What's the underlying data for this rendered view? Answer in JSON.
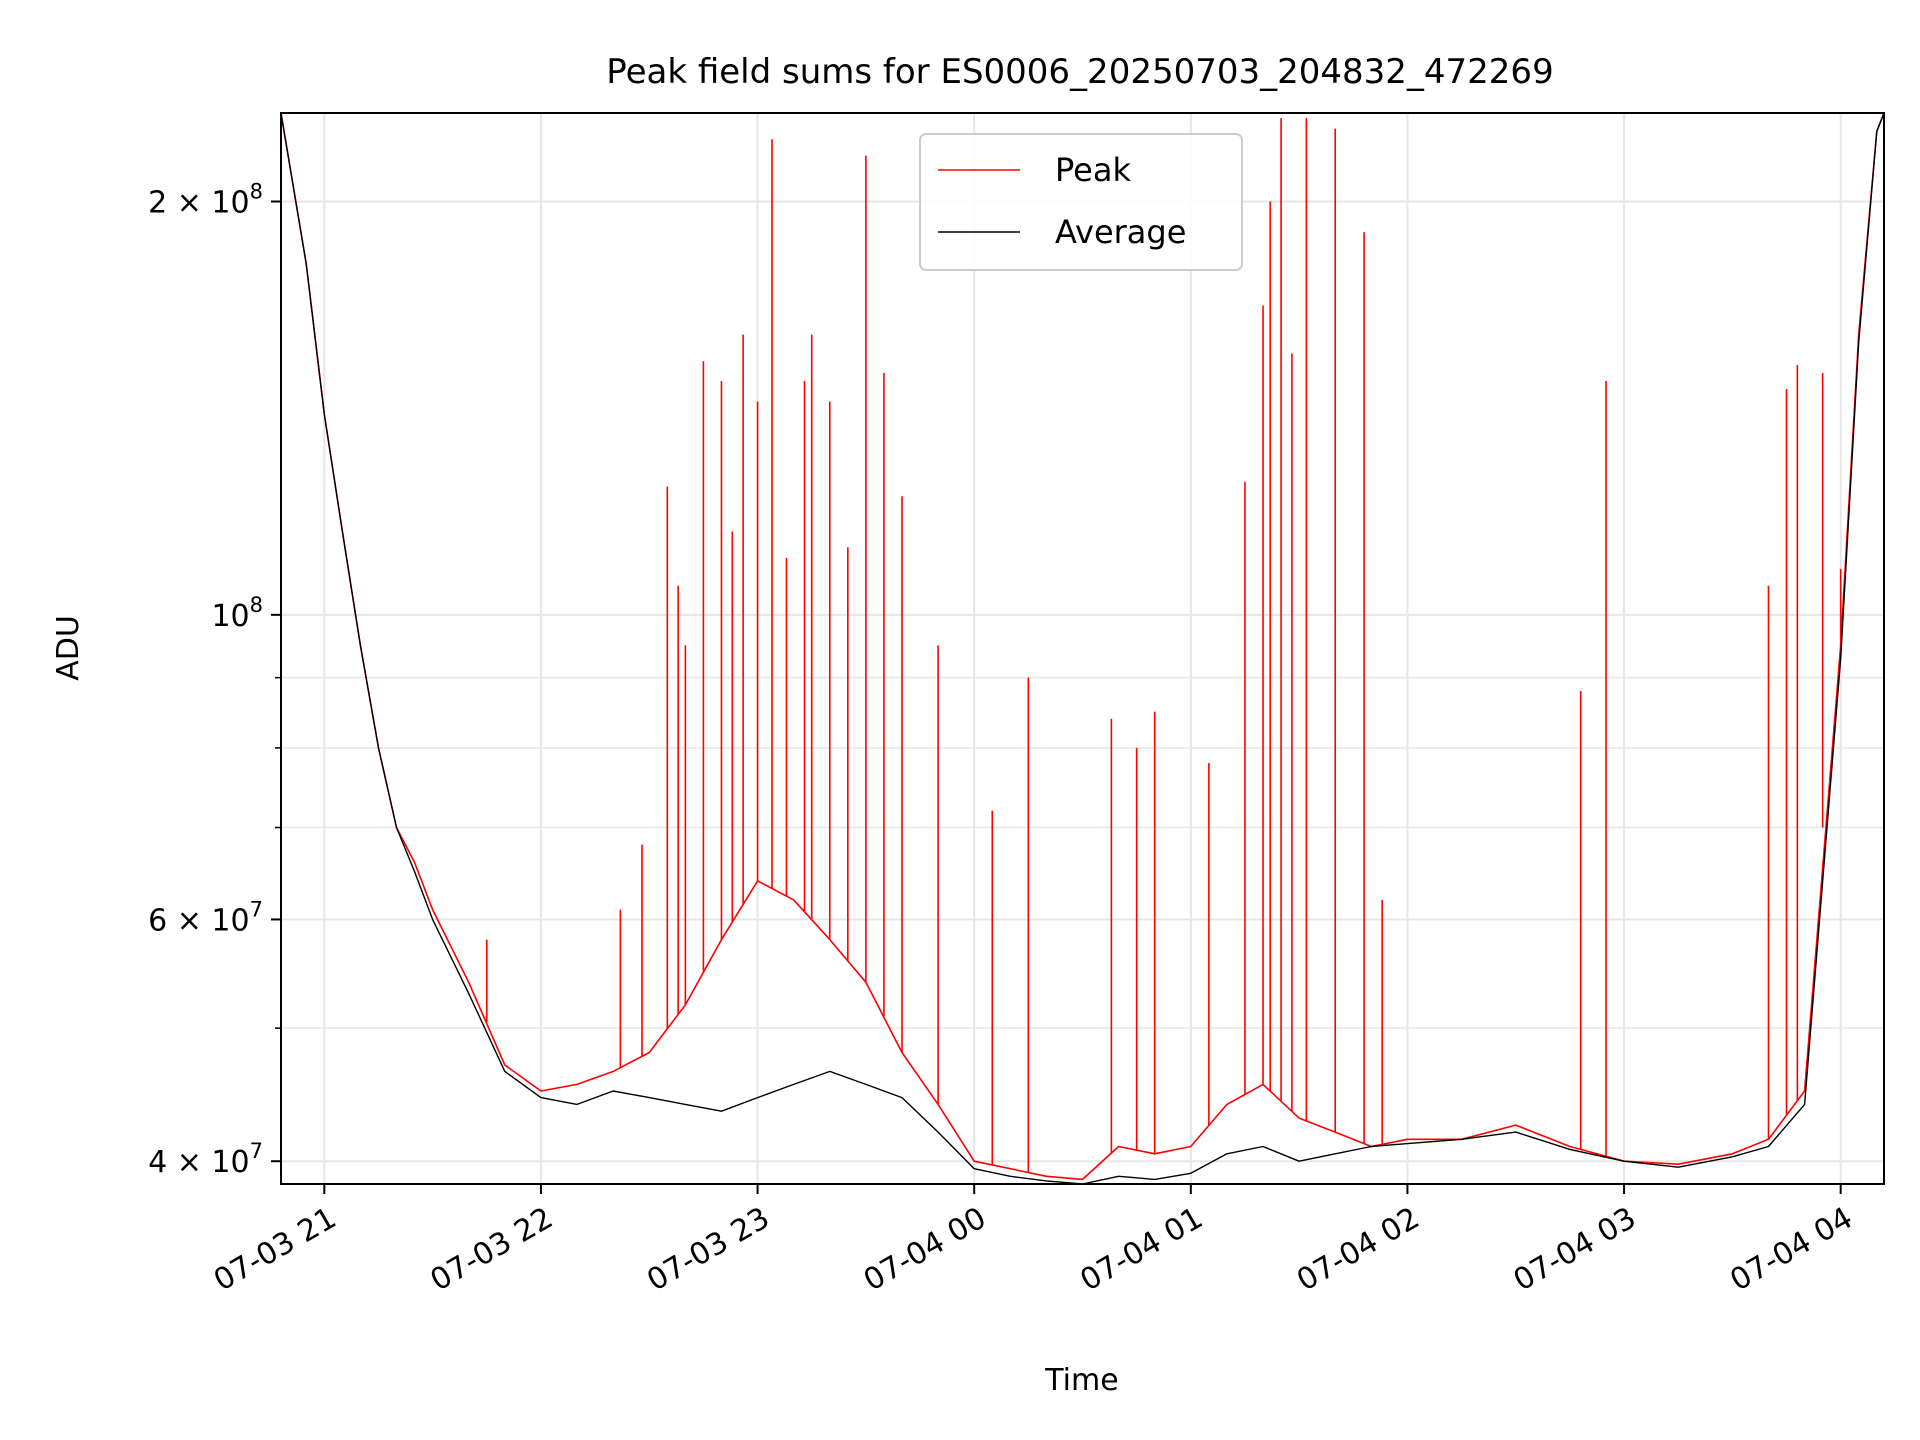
{
  "chart_data": {
    "type": "line",
    "title": "Peak field sums for ES0006_20250703_204832_472269",
    "xlabel": "Time",
    "ylabel": "ADU",
    "yscale": "log",
    "grid": true,
    "legend_position": "top-center",
    "xlim": [
      "2025-07-03 20:48",
      "2025-07-04 04:12"
    ],
    "ylim": [
      38500000,
      232000000
    ],
    "x_ticks": [
      {
        "t": "2025-07-03 21:00",
        "label": "07-03 21"
      },
      {
        "t": "2025-07-03 22:00",
        "label": "07-03 22"
      },
      {
        "t": "2025-07-03 23:00",
        "label": "07-03 23"
      },
      {
        "t": "2025-07-04 00:00",
        "label": "07-04 00"
      },
      {
        "t": "2025-07-04 01:00",
        "label": "07-04 01"
      },
      {
        "t": "2025-07-04 02:00",
        "label": "07-04 02"
      },
      {
        "t": "2025-07-04 03:00",
        "label": "07-04 03"
      },
      {
        "t": "2025-07-04 04:00",
        "label": "07-04 04"
      }
    ],
    "y_ticks": [
      {
        "value": 40000000,
        "base": "4 × 10",
        "exp": "7"
      },
      {
        "value": 60000000,
        "base": "6 × 10",
        "exp": "7"
      },
      {
        "value": 100000000,
        "base": "10",
        "exp": "8"
      },
      {
        "value": 200000000,
        "base": "2 × 10",
        "exp": "8"
      }
    ],
    "y_minor_ticks": [
      50000000,
      70000000,
      80000000,
      90000000
    ],
    "series": [
      {
        "name": "Peak",
        "color": "#ff0000",
        "x": [
          "2025-07-03 20:48",
          "2025-07-03 20:55",
          "2025-07-03 21:00",
          "2025-07-03 21:05",
          "2025-07-03 21:10",
          "2025-07-03 21:15",
          "2025-07-03 21:20",
          "2025-07-03 21:25",
          "2025-07-03 21:30",
          "2025-07-03 21:40",
          "2025-07-03 21:50",
          "2025-07-03 22:00",
          "2025-07-03 22:10",
          "2025-07-03 22:20",
          "2025-07-03 22:30",
          "2025-07-03 22:40",
          "2025-07-03 22:50",
          "2025-07-03 23:00",
          "2025-07-03 23:10",
          "2025-07-03 23:20",
          "2025-07-03 23:30",
          "2025-07-03 23:40",
          "2025-07-03 23:50",
          "2025-07-04 00:00",
          "2025-07-04 00:10",
          "2025-07-04 00:20",
          "2025-07-04 00:30",
          "2025-07-04 00:40",
          "2025-07-04 00:50",
          "2025-07-04 01:00",
          "2025-07-04 01:10",
          "2025-07-04 01:20",
          "2025-07-04 01:30",
          "2025-07-04 01:40",
          "2025-07-04 01:50",
          "2025-07-04 02:00",
          "2025-07-04 02:15",
          "2025-07-04 02:30",
          "2025-07-04 02:45",
          "2025-07-04 03:00",
          "2025-07-04 03:15",
          "2025-07-04 03:30",
          "2025-07-04 03:40",
          "2025-07-04 03:50",
          "2025-07-04 04:00",
          "2025-07-04 04:05",
          "2025-07-04 04:10",
          "2025-07-04 04:12"
        ],
        "y": [
          232000000,
          180000000,
          140000000,
          115000000,
          95000000,
          80000000,
          70000000,
          66000000,
          61000000,
          54000000,
          47000000,
          45000000,
          45500000,
          46500000,
          48000000,
          52000000,
          58000000,
          64000000,
          62000000,
          58000000,
          54000000,
          48000000,
          44000000,
          40000000,
          39500000,
          39000000,
          38800000,
          41000000,
          40500000,
          41000000,
          44000000,
          45500000,
          43000000,
          42000000,
          41000000,
          41500000,
          41500000,
          42500000,
          41000000,
          40000000,
          39800000,
          40500000,
          41500000,
          45000000,
          95000000,
          160000000,
          225000000,
          232000000
        ]
      },
      {
        "name": "Average",
        "color": "#000000",
        "x": [
          "2025-07-03 20:48",
          "2025-07-03 20:55",
          "2025-07-03 21:00",
          "2025-07-03 21:05",
          "2025-07-03 21:10",
          "2025-07-03 21:15",
          "2025-07-03 21:20",
          "2025-07-03 21:25",
          "2025-07-03 21:30",
          "2025-07-03 21:40",
          "2025-07-03 21:50",
          "2025-07-03 22:00",
          "2025-07-03 22:10",
          "2025-07-03 22:20",
          "2025-07-03 22:30",
          "2025-07-03 22:40",
          "2025-07-03 22:50",
          "2025-07-03 23:00",
          "2025-07-03 23:10",
          "2025-07-03 23:20",
          "2025-07-03 23:30",
          "2025-07-03 23:40",
          "2025-07-03 23:50",
          "2025-07-04 00:00",
          "2025-07-04 00:10",
          "2025-07-04 00:20",
          "2025-07-04 00:30",
          "2025-07-04 00:40",
          "2025-07-04 00:50",
          "2025-07-04 01:00",
          "2025-07-04 01:10",
          "2025-07-04 01:20",
          "2025-07-04 01:30",
          "2025-07-04 01:40",
          "2025-07-04 01:50",
          "2025-07-04 02:00",
          "2025-07-04 02:15",
          "2025-07-04 02:30",
          "2025-07-04 02:45",
          "2025-07-04 03:00",
          "2025-07-04 03:15",
          "2025-07-04 03:30",
          "2025-07-04 03:40",
          "2025-07-04 03:50",
          "2025-07-04 04:00",
          "2025-07-04 04:05",
          "2025-07-04 04:10",
          "2025-07-04 04:12"
        ],
        "y": [
          232000000,
          180000000,
          140000000,
          115000000,
          95000000,
          80000000,
          70000000,
          65000000,
          60000000,
          53000000,
          46500000,
          44500000,
          44000000,
          45000000,
          44500000,
          44000000,
          43500000,
          44500000,
          45500000,
          46500000,
          45500000,
          44500000,
          42000000,
          39500000,
          39000000,
          38700000,
          38500000,
          39000000,
          38800000,
          39200000,
          40500000,
          41000000,
          40000000,
          40500000,
          41000000,
          41200000,
          41500000,
          42000000,
          40800000,
          40000000,
          39600000,
          40300000,
          41000000,
          44000000,
          93000000,
          158000000,
          225000000,
          232000000
        ]
      }
    ],
    "spikes": {
      "series": "Peak",
      "x": [
        "2025-07-03 21:45",
        "2025-07-03 22:22",
        "2025-07-03 22:28",
        "2025-07-03 22:35",
        "2025-07-03 22:38",
        "2025-07-03 22:40",
        "2025-07-03 22:45",
        "2025-07-03 22:50",
        "2025-07-03 22:53",
        "2025-07-03 22:56",
        "2025-07-03 23:00",
        "2025-07-03 23:04",
        "2025-07-03 23:08",
        "2025-07-03 23:13",
        "2025-07-03 23:15",
        "2025-07-03 23:20",
        "2025-07-03 23:25",
        "2025-07-03 23:30",
        "2025-07-03 23:35",
        "2025-07-03 23:40",
        "2025-07-03 23:50",
        "2025-07-04 00:05",
        "2025-07-04 00:15",
        "2025-07-04 00:38",
        "2025-07-04 00:45",
        "2025-07-04 00:50",
        "2025-07-04 01:05",
        "2025-07-04 01:15",
        "2025-07-04 01:20",
        "2025-07-04 01:22",
        "2025-07-04 01:25",
        "2025-07-04 01:28",
        "2025-07-04 01:32",
        "2025-07-04 01:40",
        "2025-07-04 01:48",
        "2025-07-04 01:53",
        "2025-07-04 02:48",
        "2025-07-04 02:55",
        "2025-07-04 03:40",
        "2025-07-04 03:45",
        "2025-07-04 03:48",
        "2025-07-04 03:55",
        "2025-07-04 04:00"
      ],
      "y": [
        58000000,
        61000000,
        68000000,
        124000000,
        105000000,
        95000000,
        153000000,
        148000000,
        115000000,
        160000000,
        143000000,
        222000000,
        110000000,
        148000000,
        160000000,
        143000000,
        112000000,
        216000000,
        150000000,
        122000000,
        95000000,
        72000000,
        90000000,
        84000000,
        80000000,
        85000000,
        78000000,
        125000000,
        168000000,
        200000000,
        230000000,
        155000000,
        230000000,
        226000000,
        190000000,
        62000000,
        88000000,
        148000000,
        105000000,
        146000000,
        152000000,
        150000000,
        108000000
      ]
    }
  }
}
